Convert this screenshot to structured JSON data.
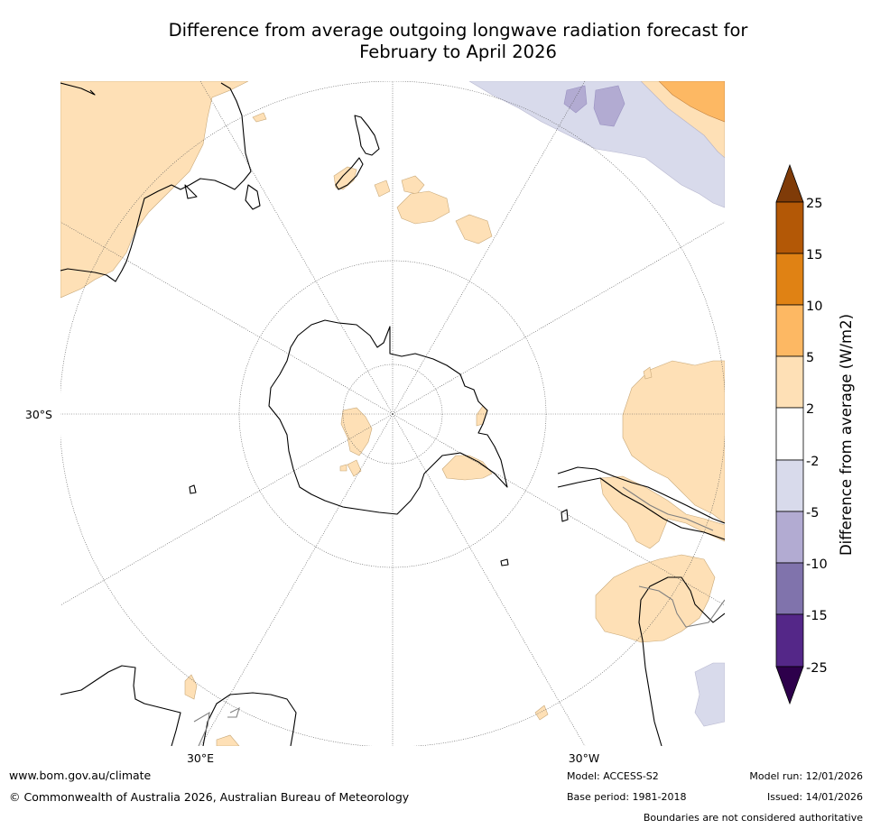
{
  "title": {
    "line1": "Difference from average outgoing longwave radiation forecast for",
    "line2": "February to April 2026"
  },
  "map": {
    "lat_label": "30°S",
    "lon_label_east": "30°E",
    "lon_label_west": "30°W"
  },
  "colorbar": {
    "label": "Difference from average (W/m2)",
    "ticks": [
      "25",
      "15",
      "10",
      "5",
      "2",
      "-2",
      "-5",
      "-10",
      "-15",
      "-25"
    ],
    "colors": {
      "over": "#7f3b08",
      "b15_25": "#b35806",
      "b10_15": "#e08214",
      "b5_10": "#fdb863",
      "b2_5": "#fee0b6",
      "neutral": "#ffffff",
      "bm5_m2": "#d8daeb",
      "bm10_m5": "#b2abd2",
      "bm15_m10": "#8073ac",
      "bm25_m15": "#542788",
      "under": "#2d004b"
    }
  },
  "footer": {
    "website": "www.bom.gov.au/climate",
    "copyright": "© Commonwealth of Australia 2026, Australian Bureau of Meteorology",
    "model": "Model: ACCESS-S2",
    "base_period": "Base period: 1981-2018",
    "model_run": "Model run: 12/01/2026",
    "issued": "Issued: 14/01/2026",
    "disclaimer": "Boundaries are not considered authoritative"
  }
}
